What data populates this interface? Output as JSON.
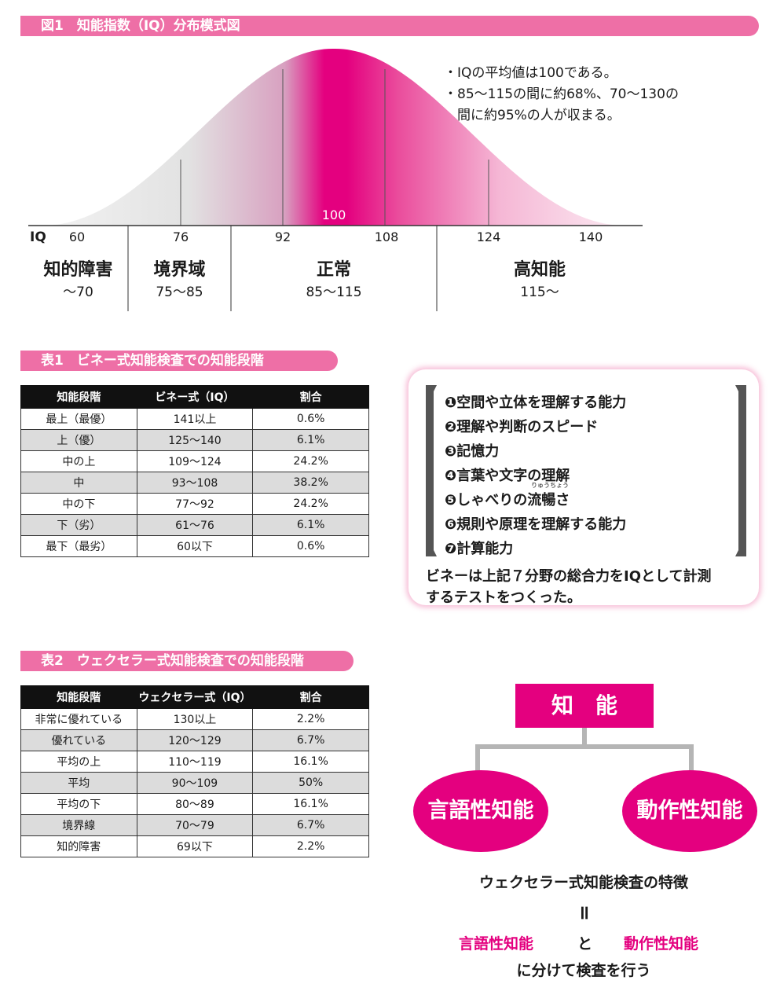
{
  "figure1": {
    "title": "図1　知能指数（IQ）分布模式図",
    "notes": [
      "・IQの平均値は100である。",
      "・85〜115の間に約68%、70〜130の",
      "　間に約95%の人が収まる。"
    ],
    "center_label": "100",
    "axis_label": "IQ",
    "ticks": [
      "60",
      "76",
      "92",
      "108",
      "124",
      "140"
    ],
    "zones": [
      {
        "name": "知的障害",
        "range": "〜70"
      },
      {
        "name": "境界域",
        "range": "75〜85"
      },
      {
        "name": "正常",
        "range": "85〜115"
      },
      {
        "name": "高知能",
        "range": "115〜"
      }
    ]
  },
  "table1": {
    "title": "表1　ビネー式知能検査での知能段階",
    "headers": [
      "知能段階",
      "ビネー式（IQ）",
      "割合"
    ],
    "rows": [
      [
        "最上（最優）",
        "141以上",
        "0.6%"
      ],
      [
        "上（優）",
        "125〜140",
        "6.1%"
      ],
      [
        "中の上",
        "109〜124",
        "24.2%"
      ],
      [
        "中",
        "93〜108",
        "38.2%"
      ],
      [
        "中の下",
        "77〜92",
        "24.2%"
      ],
      [
        "下（劣）",
        "61〜76",
        "6.1%"
      ],
      [
        "最下（最劣）",
        "60以下",
        "0.6%"
      ]
    ]
  },
  "binet_box": {
    "abilities": [
      "❶空間や立体を理解する能力",
      "❷理解や判断のスピード",
      "❸記憶力",
      "❹言葉や文字の理解",
      "❺しゃべりの流暢さ",
      "❻規則や原理を理解する能力",
      "❼計算能力"
    ],
    "ruby": "りゅうちょう",
    "summary": [
      "ビネーは上記７分野の総合力をIQとして計測",
      "するテストをつくった。"
    ]
  },
  "table2": {
    "title": "表2　ウェクセラー式知能検査での知能段階",
    "headers": [
      "知能段階",
      "ウェクセラー式（IQ）",
      "割合"
    ],
    "rows": [
      [
        "非常に優れている",
        "130以上",
        "2.2%"
      ],
      [
        "優れている",
        "120〜129",
        "6.7%"
      ],
      [
        "平均の上",
        "110〜119",
        "16.1%"
      ],
      [
        "平均",
        "90〜109",
        "50%"
      ],
      [
        "平均の下",
        "80〜89",
        "16.1%"
      ],
      [
        "境界線",
        "70〜79",
        "6.7%"
      ],
      [
        "知的障害",
        "69以下",
        "2.2%"
      ]
    ]
  },
  "wechsler_diagram": {
    "top": "知　能",
    "left": "言語性知能",
    "right": "動作性知能",
    "caption1": "ウェクセラー式知能検査の特徴",
    "equals": "॥",
    "caption2_left": "言語性知能",
    "caption2_mid": "と",
    "caption2_right": "動作性知能",
    "caption3": "に分けて検査を行う"
  },
  "colors": {
    "accent": "#e4007f",
    "pill": "#ee6fa6"
  }
}
